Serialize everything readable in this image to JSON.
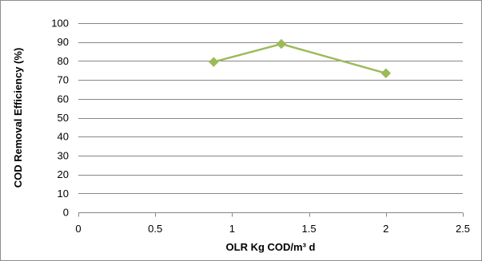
{
  "chart_data": {
    "type": "line",
    "title": "",
    "xlabel": "OLR Kg COD/m³ d",
    "ylabel": "COD Removal Efficiency (%)",
    "xlim": [
      0,
      2.5
    ],
    "ylim": [
      0,
      100
    ],
    "x_ticks": [
      "0",
      "0.5",
      "1",
      "1.5",
      "2",
      "2.5"
    ],
    "y_ticks": [
      "0",
      "10",
      "20",
      "30",
      "40",
      "50",
      "60",
      "70",
      "80",
      "90",
      "100"
    ],
    "grid": "horizontal",
    "legend": "none",
    "series": [
      {
        "x": [
          0.88,
          1.32,
          2.0
        ],
        "y": [
          79.5,
          89,
          73.5
        ],
        "color": "#9bbb59",
        "marker": "diamond"
      }
    ]
  }
}
